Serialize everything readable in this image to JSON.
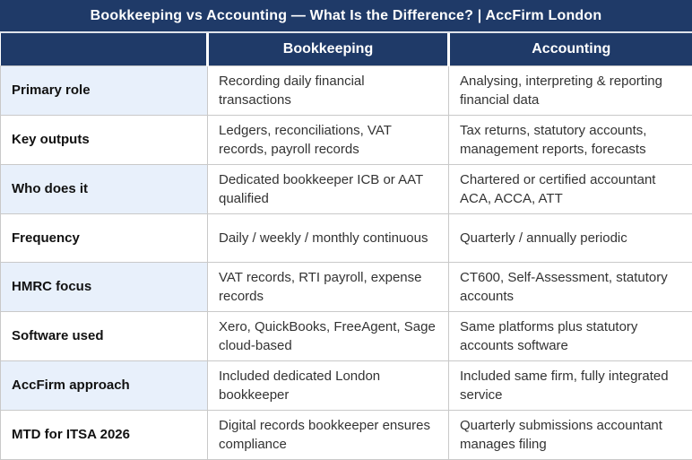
{
  "title": "Bookkeeping vs Accounting — What Is the Difference? | AccFirm London",
  "colors": {
    "header_navy": "#1f3a68",
    "label_alt_blue": "#e8f0fb",
    "border_gray": "#c9c9c9",
    "body_text": "#333333",
    "header_text": "#ffffff"
  },
  "chart_data": {
    "type": "table",
    "title": "Bookkeeping vs Accounting — What Is the Difference? | AccFirm London",
    "columns": [
      "",
      "Bookkeeping",
      "Accounting"
    ],
    "rows": [
      {
        "label": "Primary role",
        "bookkeeping": "Recording daily financial transactions",
        "accounting": "Analysing, interpreting & reporting financial data"
      },
      {
        "label": "Key outputs",
        "bookkeeping": "Ledgers, reconciliations, VAT records, payroll records",
        "accounting": "Tax returns, statutory accounts, management reports, forecasts"
      },
      {
        "label": "Who does it",
        "bookkeeping": "Dedicated bookkeeper ICB or AAT qualified",
        "accounting": "Chartered or certified accountant ACA, ACCA, ATT"
      },
      {
        "label": "Frequency",
        "bookkeeping": "Daily / weekly / monthly continuous",
        "accounting": "Quarterly / annually periodic"
      },
      {
        "label": "HMRC focus",
        "bookkeeping": "VAT records, RTI payroll, expense records",
        "accounting": "CT600, Self-Assessment, statutory accounts"
      },
      {
        "label": "Software used",
        "bookkeeping": "Xero, QuickBooks, FreeAgent, Sage cloud-based",
        "accounting": "Same platforms plus statutory accounts software"
      },
      {
        "label": "AccFirm approach",
        "bookkeeping": "Included dedicated London bookkeeper",
        "accounting": "Included same firm, fully integrated service"
      },
      {
        "label": "MTD for ITSA 2026",
        "bookkeeping": "Digital records bookkeeper ensures compliance",
        "accounting": "Quarterly submissions accountant manages filing"
      }
    ]
  }
}
